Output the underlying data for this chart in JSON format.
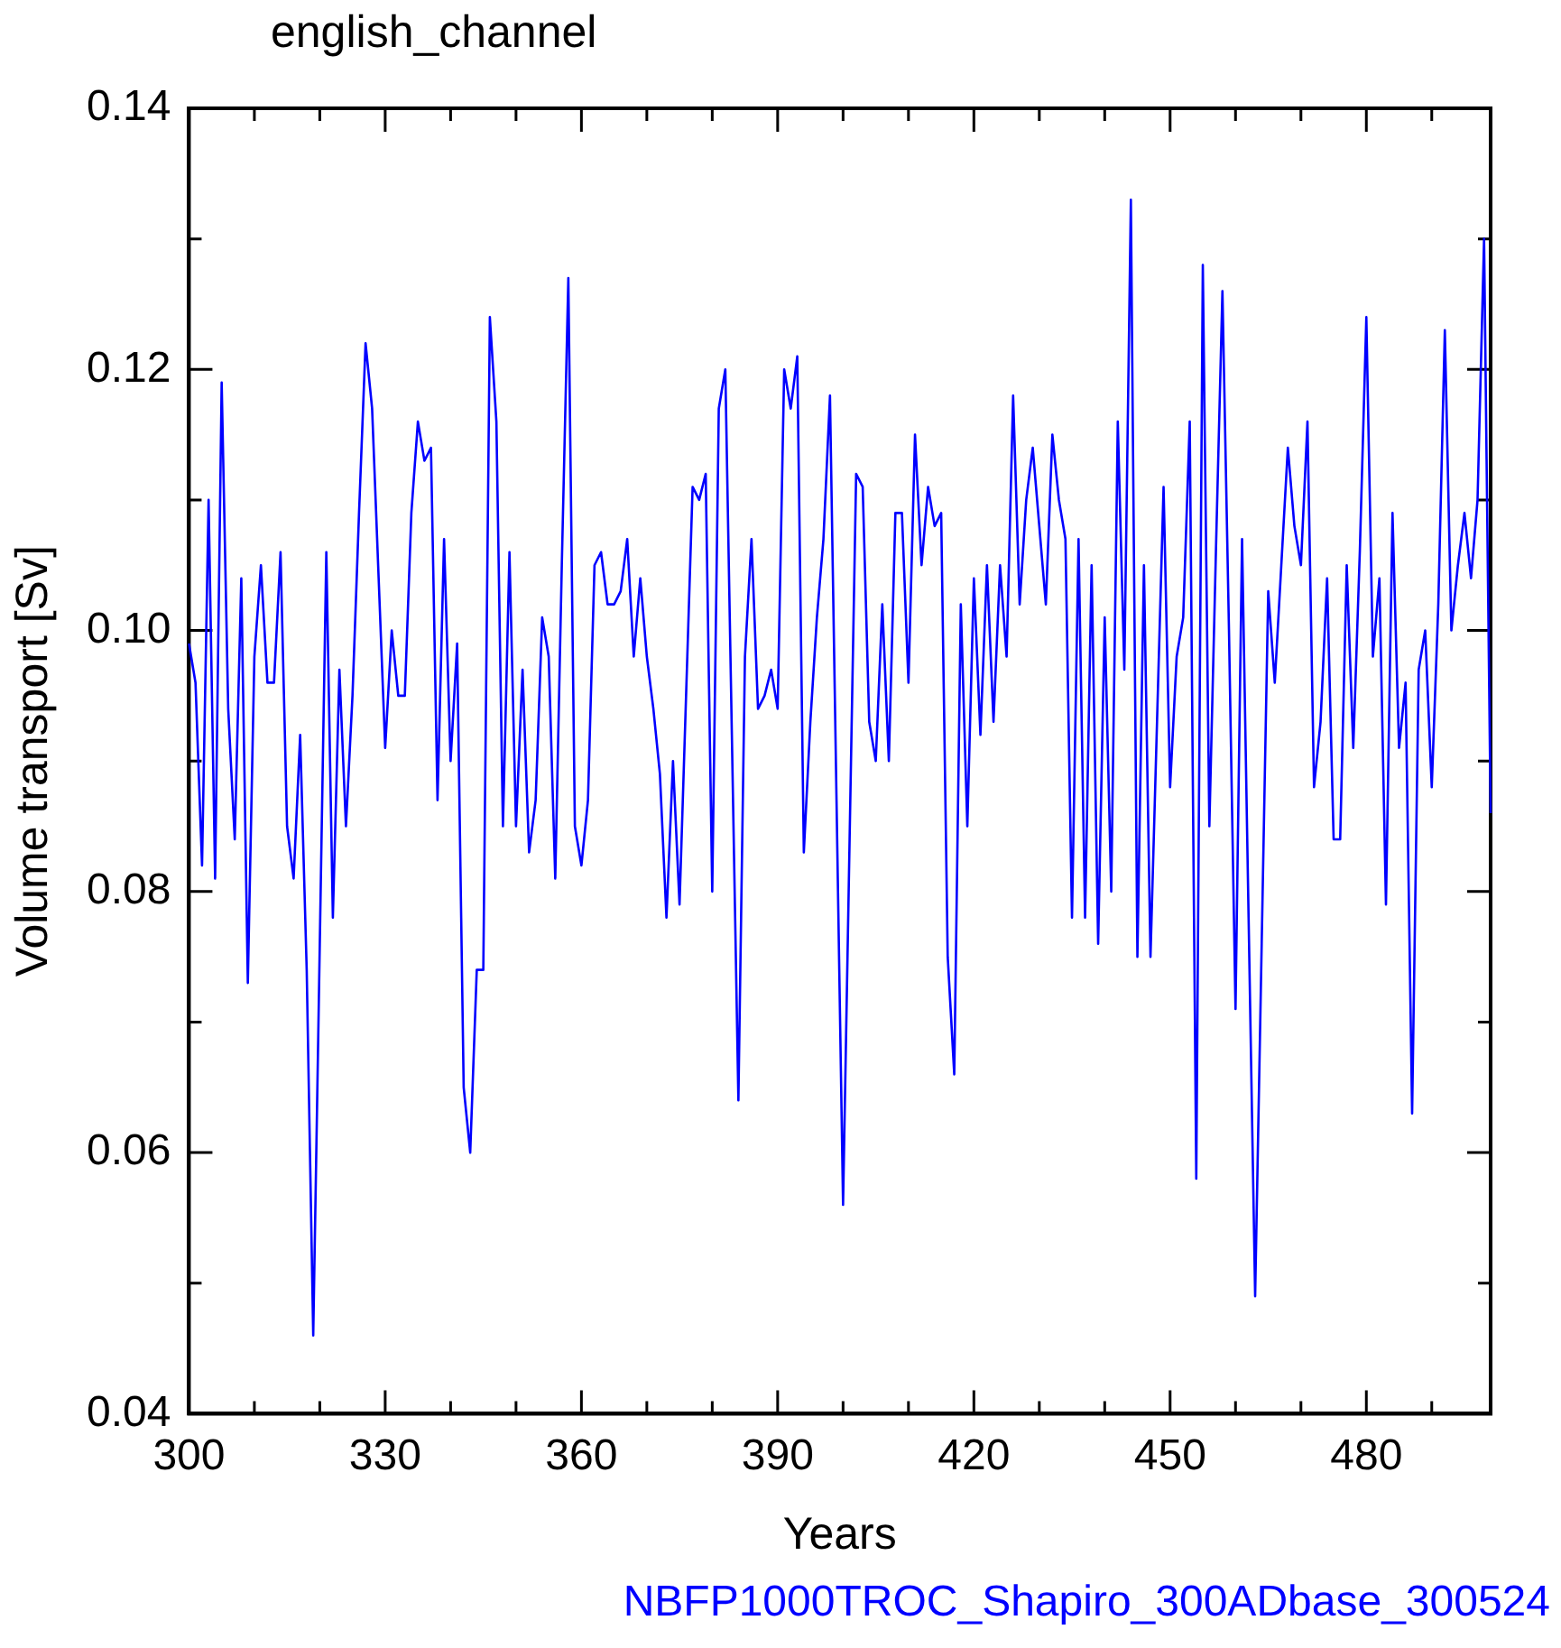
{
  "chart_data": {
    "type": "line",
    "title": "english_channel",
    "xlabel": "Years",
    "ylabel": "Volume transport [Sv]",
    "annotations": [
      "NBFP1000TROC_Shapiro_300ADbase_300524"
    ],
    "x": [
      300,
      301,
      302,
      303,
      304,
      305,
      306,
      307,
      308,
      309,
      310,
      311,
      312,
      313,
      314,
      315,
      316,
      317,
      318,
      319,
      320,
      321,
      322,
      323,
      324,
      325,
      326,
      327,
      328,
      329,
      330,
      331,
      332,
      333,
      334,
      335,
      336,
      337,
      338,
      339,
      340,
      341,
      342,
      343,
      344,
      345,
      346,
      347,
      348,
      349,
      350,
      351,
      352,
      353,
      354,
      355,
      356,
      357,
      358,
      359,
      360,
      361,
      362,
      363,
      364,
      365,
      366,
      367,
      368,
      369,
      370,
      371,
      372,
      373,
      374,
      375,
      376,
      377,
      378,
      379,
      380,
      381,
      382,
      383,
      384,
      385,
      386,
      387,
      388,
      389,
      390,
      391,
      392,
      393,
      394,
      395,
      396,
      397,
      398,
      399,
      400,
      401,
      402,
      403,
      404,
      405,
      406,
      407,
      408,
      409,
      410,
      411,
      412,
      413,
      414,
      415,
      416,
      417,
      418,
      419,
      420,
      421,
      422,
      423,
      424,
      425,
      426,
      427,
      428,
      429,
      430,
      431,
      432,
      433,
      434,
      435,
      436,
      437,
      438,
      439,
      440,
      441,
      442,
      443,
      444,
      445,
      446,
      447,
      448,
      449,
      450,
      451,
      452,
      453,
      454,
      455,
      456,
      457,
      458,
      459,
      460,
      461,
      462,
      463,
      464,
      465,
      466,
      467,
      468,
      469,
      470,
      471,
      472,
      473,
      474,
      475,
      476,
      477,
      478,
      479,
      480,
      481,
      482,
      483,
      484,
      485,
      486,
      487,
      488,
      489,
      490,
      491,
      492,
      493,
      494,
      495,
      496,
      497,
      498,
      499
    ],
    "series": [
      {
        "color": "#0000ff",
        "values": [
          0.099,
          0.096,
          0.082,
          0.11,
          0.081,
          0.119,
          0.094,
          0.084,
          0.104,
          0.073,
          0.098,
          0.105,
          0.096,
          0.096,
          0.106,
          0.085,
          0.081,
          0.092,
          0.074,
          0.046,
          0.076,
          0.106,
          0.078,
          0.097,
          0.085,
          0.095,
          0.109,
          0.122,
          0.117,
          0.104,
          0.091,
          0.1,
          0.095,
          0.095,
          0.109,
          0.116,
          0.113,
          0.114,
          0.087,
          0.107,
          0.09,
          0.099,
          0.065,
          0.06,
          0.074,
          0.074,
          0.124,
          0.116,
          0.085,
          0.106,
          0.085,
          0.097,
          0.083,
          0.087,
          0.101,
          0.098,
          0.081,
          0.105,
          0.127,
          0.085,
          0.082,
          0.087,
          0.105,
          0.106,
          0.102,
          0.102,
          0.103,
          0.107,
          0.098,
          0.104,
          0.098,
          0.094,
          0.089,
          0.078,
          0.09,
          0.079,
          0.095,
          0.111,
          0.11,
          0.112,
          0.08,
          0.117,
          0.12,
          0.092,
          0.064,
          0.098,
          0.107,
          0.094,
          0.095,
          0.097,
          0.094,
          0.12,
          0.117,
          0.121,
          0.083,
          0.093,
          0.101,
          0.107,
          0.118,
          0.087,
          0.056,
          0.084,
          0.112,
          0.111,
          0.093,
          0.09,
          0.102,
          0.09,
          0.109,
          0.109,
          0.096,
          0.115,
          0.105,
          0.111,
          0.108,
          0.109,
          0.075,
          0.066,
          0.102,
          0.085,
          0.104,
          0.092,
          0.105,
          0.093,
          0.105,
          0.098,
          0.118,
          0.102,
          0.11,
          0.114,
          0.108,
          0.102,
          0.115,
          0.11,
          0.107,
          0.078,
          0.107,
          0.078,
          0.105,
          0.076,
          0.101,
          0.08,
          0.116,
          0.097,
          0.133,
          0.075,
          0.105,
          0.075,
          0.093,
          0.111,
          0.088,
          0.098,
          0.101,
          0.116,
          0.058,
          0.128,
          0.085,
          0.106,
          0.126,
          0.1,
          0.071,
          0.107,
          0.078,
          0.049,
          0.076,
          0.103,
          0.096,
          0.105,
          0.114,
          0.108,
          0.105,
          0.116,
          0.088,
          0.093,
          0.104,
          0.084,
          0.084,
          0.105,
          0.091,
          0.106,
          0.124,
          0.098,
          0.104,
          0.079,
          0.109,
          0.091,
          0.096,
          0.063,
          0.097,
          0.1,
          0.088,
          0.102,
          0.123,
          0.1,
          0.105,
          0.109,
          0.104,
          0.11,
          0.13,
          0.086
        ]
      }
    ],
    "xlim": [
      300,
      499
    ],
    "xticks": [
      300,
      {
        "value": 310,
        "label": null
      },
      {
        "value": 320,
        "label": null
      },
      330,
      {
        "value": 340,
        "label": null
      },
      {
        "value": 350,
        "label": null
      },
      360,
      {
        "value": 370,
        "label": null
      },
      {
        "value": 380,
        "label": null
      },
      390,
      {
        "value": 400,
        "label": null
      },
      {
        "value": 410,
        "label": null
      },
      420,
      {
        "value": 430,
        "label": null
      },
      {
        "value": 440,
        "label": null
      },
      450,
      {
        "value": 460,
        "label": null
      },
      {
        "value": 470,
        "label": null
      },
      480,
      {
        "value": 490,
        "label": null
      }
    ],
    "ylim": [
      0.04,
      0.14
    ],
    "yticks": [
      {
        "value": 0.04,
        "label": "0.04"
      },
      {
        "value": 0.05,
        "label": null
      },
      {
        "value": 0.06,
        "label": "0.06"
      },
      {
        "value": 0.07,
        "label": null
      },
      {
        "value": 0.08,
        "label": "0.08"
      },
      {
        "value": 0.09,
        "label": null
      },
      {
        "value": 0.1,
        "label": "0.10"
      },
      {
        "value": 0.11,
        "label": null
      },
      {
        "value": 0.12,
        "label": "0.12"
      },
      {
        "value": 0.13,
        "label": null
      },
      {
        "value": 0.14,
        "label": "0.14"
      }
    ],
    "grid": false,
    "legend": false,
    "marker": "none",
    "line_style": "solid"
  }
}
